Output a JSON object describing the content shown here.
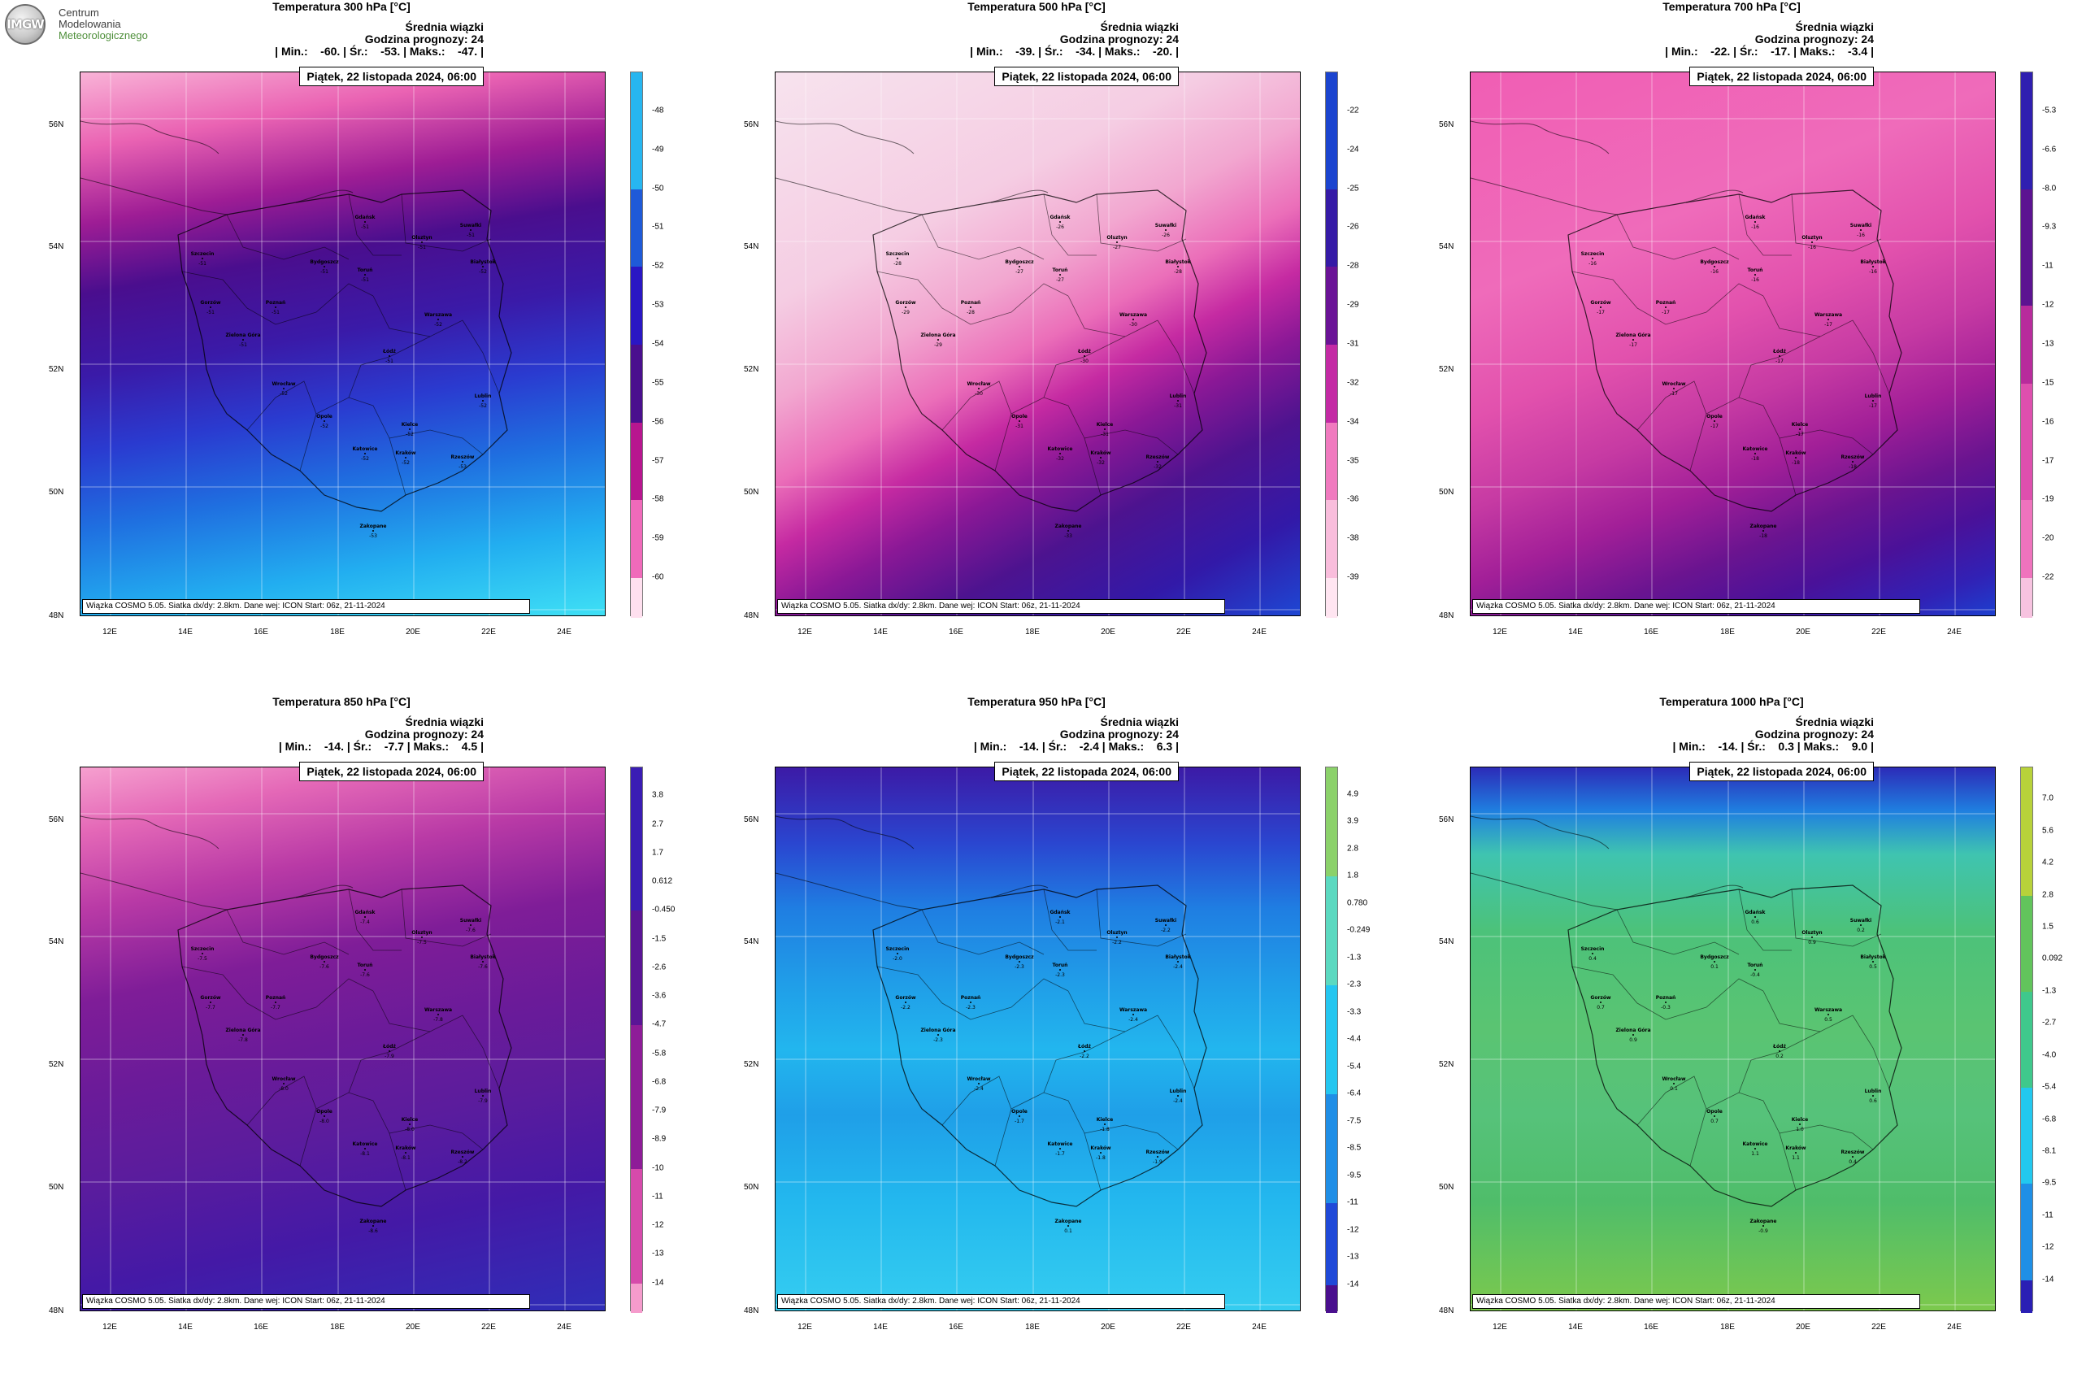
{
  "logo": {
    "badge": "IMGW",
    "line1": "Centrum",
    "line2": "Modelowania",
    "line3": "Meteorologicznego"
  },
  "common": {
    "header": "Średnia wiązki",
    "forecast_hour": "Godzina prognozy: 24",
    "date": "Piątek, 22 listopada 2024, 06:00",
    "footer": "Wiązka COSMO 5.05. Siatka dx/dy: 2.8km. Dane wej: ICON Start: 06z, 21-11-2024",
    "lat_ticks": [
      "56N",
      "54N",
      "52N",
      "50N",
      "48N"
    ],
    "lon_ticks": [
      "12E",
      "14E",
      "16E",
      "18E",
      "20E",
      "22E",
      "24E"
    ],
    "cities": [
      "Gdańsk",
      "Olsztyn",
      "Suwałki",
      "Szczecin",
      "Bydgoszcz",
      "Toruń",
      "Białystok",
      "Gorzów",
      "Poznań",
      "Warszawa",
      "Zielona Góra",
      "Łódź",
      "Wrocław",
      "Lublin",
      "Opole",
      "Kielce",
      "Katowice",
      "Kraków",
      "Rzeszów",
      "Zakopane"
    ]
  },
  "panels": [
    {
      "title": "Temperatura 300 hPa [°C]",
      "stats": "| Min.:    -60. | Śr.:    -53. | Maks.:    -47. |",
      "colors": [
        "#ffe0ef",
        "#f06aba",
        "#b8168f",
        "#4a0f8e",
        "#2a17c4",
        "#1f5ad8",
        "#27b6f0"
      ],
      "gradient": "linear-gradient(170deg, #f9b3d7 0%, #ea63b3 12%, #9e1d95 24%, #4a0e8e 35%, #3a1aa8 48%, #2a3bd0 60%, #1f6fe0 72%, #22aef0 86%, #3fe0f5 100%)",
      "legend": [
        "-48",
        "-49",
        "-50",
        "-51",
        "-52",
        "-53",
        "-54",
        "-55",
        "-56",
        "-57",
        "-58",
        "-59",
        "-60"
      ],
      "city_values": [
        "-51",
        "-51",
        "-51",
        "-51",
        "-51",
        "-51",
        "-52",
        "-51",
        "-51",
        "-52",
        "-51",
        "-51",
        "-52",
        "-52",
        "-52",
        "-52",
        "-52",
        "-52",
        "-53",
        "-53"
      ]
    },
    {
      "title": "Temperatura 500 hPa [°C]",
      "stats": "| Min.:    -39. | Śr.:    -34. | Maks.:    -20. |",
      "colors": [
        "#ffe5f1",
        "#f9bddc",
        "#f07abf",
        "#c32aa4",
        "#6a1396",
        "#351aa6",
        "#1b44cf"
      ],
      "gradient": "linear-gradient(152deg, #f7e3ee 0%, #f5cde3 28%, #f2a7d0 40%, #eb6eb9 50%, #c52aa2 58%, #8a1896 66%, #4d138f 76%, #3219a8 88%, #1e47d3 100%)",
      "legend": [
        "-22",
        "-24",
        "-25",
        "-26",
        "-28",
        "-29",
        "-31",
        "-32",
        "-34",
        "-35",
        "-36",
        "-38",
        "-39"
      ],
      "city_values": [
        "-26",
        "-27",
        "-26",
        "-28",
        "-27",
        "-27",
        "-28",
        "-29",
        "-28",
        "-30",
        "-29",
        "-30",
        "-30",
        "-31",
        "-31",
        "-31",
        "-32",
        "-32",
        "-32",
        "-33"
      ]
    },
    {
      "title": "Temperatura 700 hPa [°C]",
      "stats": "| Min.:    -22. | Śr.:    -17. | Maks.:    -3.4 |",
      "colors": [
        "#f7c3e0",
        "#ef73bd",
        "#de4fae",
        "#b82b9c",
        "#5c1391",
        "#2f1fb0"
      ],
      "gradient": "linear-gradient(158deg, #f05eb4 0%, #ef6bba 30%, #e251ad 46%, #c63aa3 58%, #a21f98 68%, #6a1490 78%, #4a1199 86%, #3121b5 94%, #1d3fcf 100%)",
      "legend": [
        "-5.3",
        "-6.6",
        "-8.0",
        "-9.3",
        "-11",
        "-12",
        "-13",
        "-15",
        "-16",
        "-17",
        "-19",
        "-20",
        "-22"
      ],
      "city_values": [
        "-16",
        "-16",
        "-16",
        "-16",
        "-16",
        "-16",
        "-16",
        "-17",
        "-17",
        "-17",
        "-17",
        "-17",
        "-17",
        "-17",
        "-17",
        "-17",
        "-18",
        "-18",
        "-18",
        "-18"
      ]
    },
    {
      "title": "Temperatura 850 hPa [°C]",
      "stats": "| Min.:    -14. | Śr.:    -7.7 | Maks.:    4.5 |",
      "colors": [
        "#f59bcc",
        "#d64aab",
        "#8e1c98",
        "#5a1596",
        "#3a1db4"
      ],
      "gradient": "linear-gradient(168deg, #f6a0cf 0%, #e468b7 10%, #b93aa6 22%, #7f1d98 36%, #6b1b99 50%, #5b1c9d 64%, #4419a6 80%, #2f2eb8 100%)",
      "legend": [
        "3.8",
        "2.7",
        "1.7",
        "0.612",
        "-0.450",
        "-1.5",
        "-2.6",
        "-3.6",
        "-4.7",
        "-5.8",
        "-6.8",
        "-7.9",
        "-8.9",
        "-10",
        "-11",
        "-12",
        "-13",
        "-14"
      ],
      "city_values": [
        "-7.4",
        "-7.5",
        "-7.6",
        "-7.5",
        "-7.6",
        "-7.6",
        "-7.6",
        "-7.7",
        "-7.7",
        "-7.8",
        "-7.8",
        "-7.9",
        "-8.0",
        "-7.9",
        "-8.0",
        "-8.0",
        "-8.1",
        "-8.1",
        "-8.2",
        "-8.6"
      ]
    },
    {
      "title": "Temperatura 950 hPa [°C]",
      "stats": "| Min.:    -14. | Śr.:    -2.4 | Maks.:    6.3 |",
      "colors": [
        "#4a0f8e",
        "#1f49d8",
        "#1f8ee6",
        "#24c6f0",
        "#5bd9c0",
        "#8bd16a"
      ],
      "gradient": "linear-gradient(180deg, #3c1aa6 0%, #2a46d0 14%, #1f7ee2 26%, #209ee8 40%, #22b6ee 52%, #1f9fe8 64%, #23b8ee 80%, #35cdf0 100%)",
      "legend": [
        "4.9",
        "3.9",
        "2.8",
        "1.8",
        "0.780",
        "-0.249",
        "-1.3",
        "-2.3",
        "-3.3",
        "-4.4",
        "-5.4",
        "-6.4",
        "-7.5",
        "-8.5",
        "-9.5",
        "-11",
        "-12",
        "-13",
        "-14"
      ],
      "city_values": [
        "-2.1",
        "-2.2",
        "-2.2",
        "-2.0",
        "-2.3",
        "-2.3",
        "-2.4",
        "-2.2",
        "-2.3",
        "-2.4",
        "-2.3",
        "-2.2",
        "-2.4",
        "-2.4",
        "-1.7",
        "-1.8",
        "-1.7",
        "-1.8",
        "-1.9",
        "0.1"
      ]
    },
    {
      "title": "Temperatura 1000 hPa [°C]",
      "stats": "| Min.:    -14. | Śr.:    0.3 | Maks.:    9.0 |",
      "colors": [
        "#2a1fb4",
        "#1f8fe6",
        "#22c8ef",
        "#3fc88c",
        "#62c45c",
        "#b8d23a"
      ],
      "gradient": "linear-gradient(180deg, #2c2bb8 0%, #1f7fe0 8%, #3fc4b0 16%, #4cc27a 30%, #5ac472 48%, #56c27a 64%, #4fbd6a 80%, #7cc94d 100%)",
      "legend": [
        "7.0",
        "5.6",
        "4.2",
        "2.8",
        "1.5",
        "0.092",
        "-1.3",
        "-2.7",
        "-4.0",
        "-5.4",
        "-6.8",
        "-8.1",
        "-9.5",
        "-11",
        "-12",
        "-14"
      ],
      "city_values": [
        "0.6",
        "0.9",
        "0.2",
        "0.4",
        "0.1",
        "-0.4",
        "0.5",
        "0.7",
        "-0.3",
        "0.5",
        "0.9",
        "0.2",
        "0.1",
        "0.6",
        "0.7",
        "1.0",
        "1.1",
        "1.1",
        "0.4",
        "-0.9"
      ]
    }
  ]
}
